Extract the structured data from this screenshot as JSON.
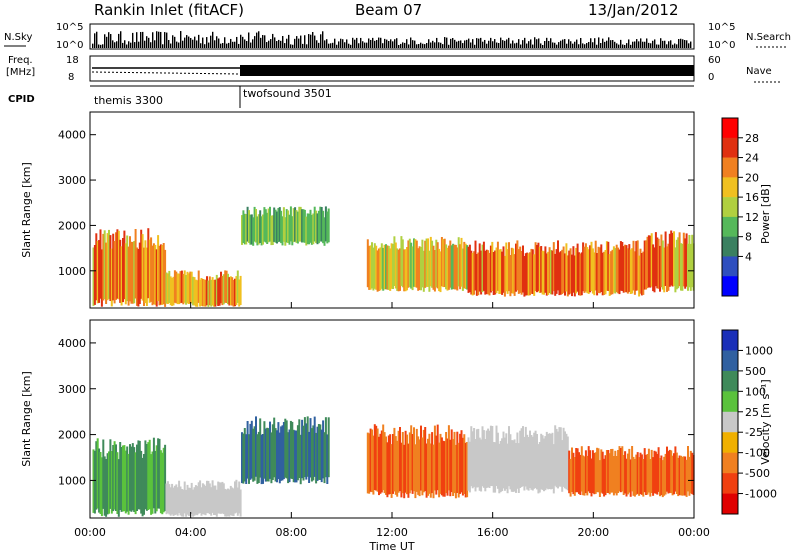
{
  "header": {
    "station": "Rankin Inlet (fitACF)",
    "beam": "Beam 07",
    "date": "13/Jan/2012"
  },
  "noise_panel": {
    "left_label": "N.Sky",
    "right_label": "N.Search",
    "ticks_left": [
      "10^5",
      "10^0"
    ],
    "ticks_right": [
      "10^5",
      "10^0"
    ]
  },
  "freq_panel": {
    "left_label_line1": "Freq.",
    "left_label_line2": "[MHz]",
    "right_label": "Nave",
    "ticks_left": [
      "18",
      "8"
    ],
    "ticks_right": [
      "60",
      "0"
    ]
  },
  "cpid_panel": {
    "label": "CPID",
    "modes": [
      {
        "name": "themis 3300",
        "start_hour": 0
      },
      {
        "name": "twofsound 3501",
        "start_hour": 6
      }
    ]
  },
  "x_axis": {
    "label": "Time UT",
    "ticks": [
      "00:00",
      "04:00",
      "08:00",
      "12:00",
      "16:00",
      "20:00",
      "00:00"
    ],
    "range_hours": [
      0,
      24
    ]
  },
  "y_axis": {
    "label": "Slant Range [km]",
    "ticks": [
      "1000",
      "2000",
      "3000",
      "4000"
    ],
    "range_km": [
      180,
      4500
    ]
  },
  "power_colorbar": {
    "label": "Power [dB]",
    "ticks": [
      "4",
      "8",
      "12",
      "16",
      "20",
      "24",
      "28"
    ],
    "colors": [
      "#0000ff",
      "#2f4fbf",
      "#3a8060",
      "#55b85a",
      "#b0d040",
      "#f0c020",
      "#f08020",
      "#e03010",
      "#ff0000"
    ]
  },
  "velocity_colorbar": {
    "label": "Velocity [m s⁻¹]",
    "ticks": [
      "1000",
      "500",
      "100",
      "25",
      "-25",
      "-100",
      "-500",
      "-1000"
    ],
    "colors": [
      "#1a2fb8",
      "#3060a0",
      "#3f8a5a",
      "#5ac23c",
      "#c8c8c8",
      "#f0b000",
      "#f08020",
      "#f04010",
      "#e00000"
    ]
  },
  "chart_data": [
    {
      "type": "heatmap",
      "title": "Power",
      "xlabel": "Time UT",
      "ylabel": "Slant Range [km]",
      "xlim": [
        0,
        24
      ],
      "ylim": [
        180,
        4500
      ],
      "colorbar": "Power [dB]",
      "regions": [
        {
          "t0": 0.1,
          "t1": 3.0,
          "r0": 300,
          "r1": 1700,
          "value": 26
        },
        {
          "t0": 3.0,
          "t1": 6.0,
          "r0": 250,
          "r1": 900,
          "value": 24
        },
        {
          "t0": 6.0,
          "t1": 9.5,
          "r0": 1600,
          "r1": 2300,
          "value": 14
        },
        {
          "t0": 11.0,
          "t1": 15.0,
          "r0": 600,
          "r1": 1600,
          "value": 22
        },
        {
          "t0": 15.0,
          "t1": 22.0,
          "r0": 500,
          "r1": 1500,
          "value": 28
        },
        {
          "t0": 22.0,
          "t1": 24.0,
          "r0": 600,
          "r1": 1700,
          "value": 24
        }
      ]
    },
    {
      "type": "heatmap",
      "title": "Velocity",
      "xlabel": "Time UT",
      "ylabel": "Slant Range [km]",
      "xlim": [
        0,
        24
      ],
      "ylim": [
        180,
        4500
      ],
      "colorbar": "Velocity [m s⁻¹]",
      "regions": [
        {
          "t0": 0.1,
          "t1": 3.0,
          "r0": 300,
          "r1": 1700,
          "value": 100
        },
        {
          "t0": 3.0,
          "t1": 6.0,
          "r0": 250,
          "r1": 900,
          "value": 0
        },
        {
          "t0": 6.0,
          "t1": 9.5,
          "r0": 1000,
          "r1": 2200,
          "value": 500
        },
        {
          "t0": 11.0,
          "t1": 15.0,
          "r0": 700,
          "r1": 2000,
          "value": -500
        },
        {
          "t0": 15.0,
          "t1": 19.0,
          "r0": 800,
          "r1": 2000,
          "value": 0
        },
        {
          "t0": 19.0,
          "t1": 24.0,
          "r0": 700,
          "r1": 1600,
          "value": -500
        }
      ]
    }
  ]
}
